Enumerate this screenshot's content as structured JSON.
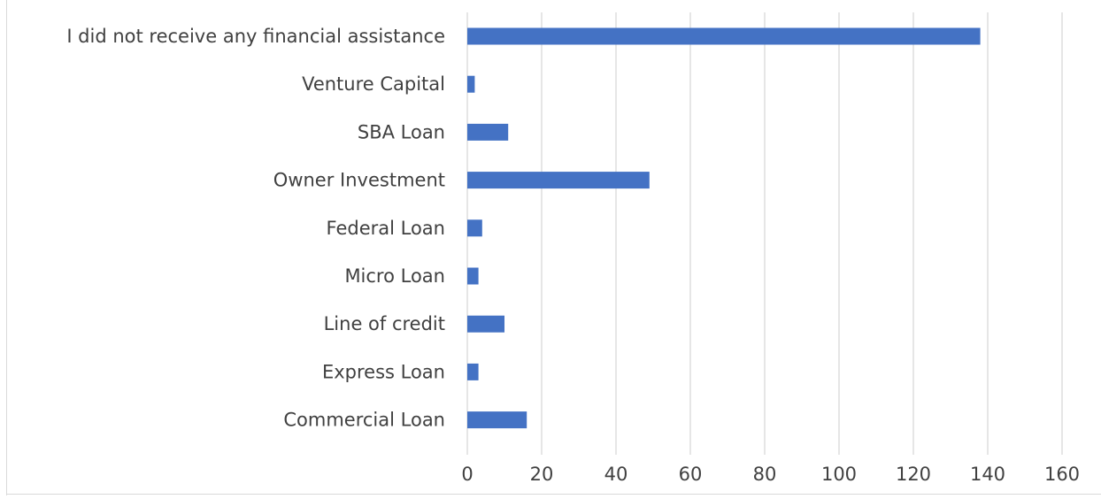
{
  "chart_data": {
    "type": "bar",
    "orientation": "horizontal",
    "categories": [
      "I did not receive any financial assistance",
      "Venture Capital",
      "SBA Loan",
      "Owner Investment",
      "Federal Loan",
      "Micro Loan",
      "Line of credit",
      "Express Loan",
      "Commercial Loan"
    ],
    "values": [
      138,
      2,
      11,
      49,
      4,
      3,
      10,
      3,
      16
    ],
    "xlim": [
      0,
      160
    ],
    "x_ticks": [
      0,
      20,
      40,
      60,
      80,
      100,
      120,
      140,
      160
    ],
    "grid": true,
    "legend": "none",
    "bar_color": "#4472c4",
    "grid_color": "#d9d9d9",
    "text_color": "#404040"
  }
}
